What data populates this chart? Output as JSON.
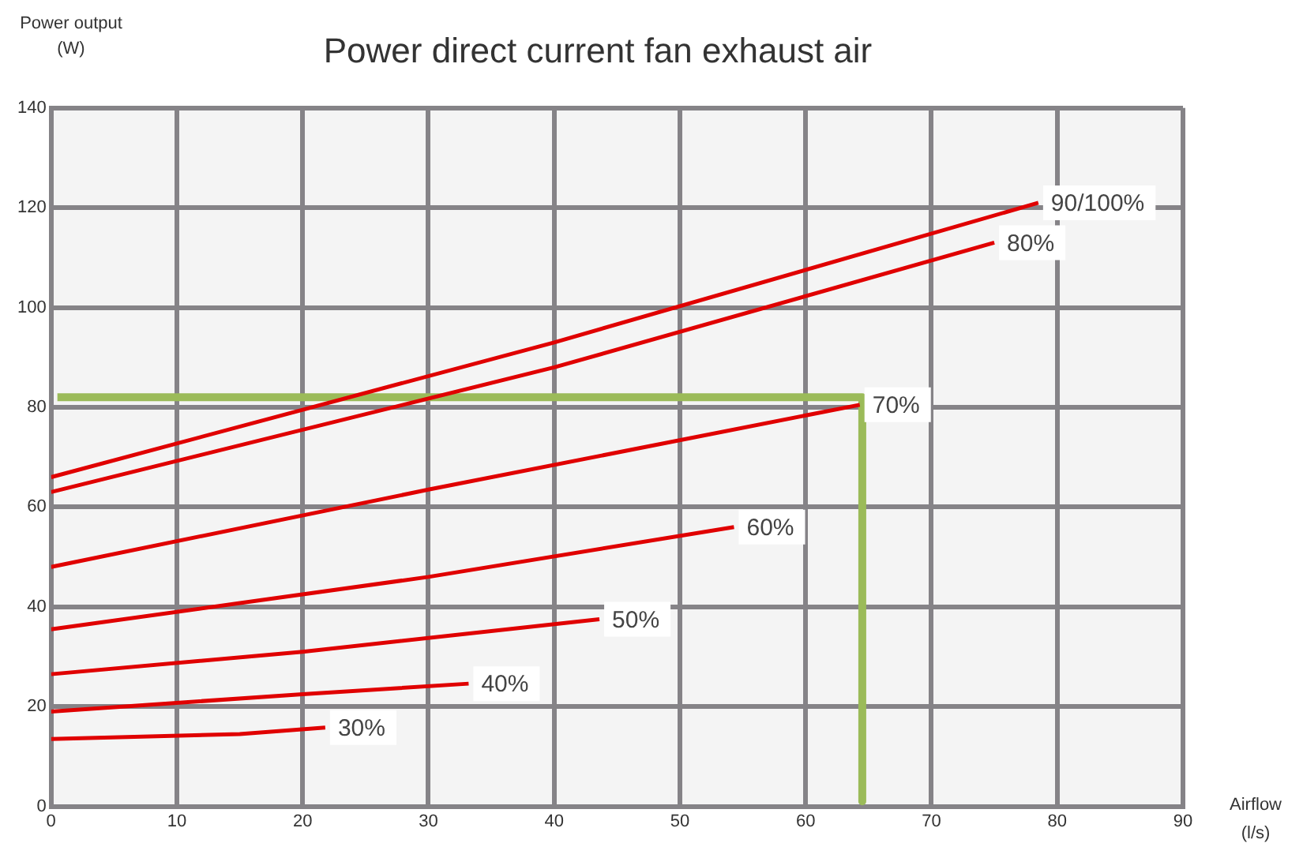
{
  "chart_data": {
    "type": "line",
    "title": "Power direct current fan exhaust air",
    "xlabel": "Airflow (l/s)",
    "ylabel": "Power output (W)",
    "xlim": [
      0,
      90
    ],
    "xticks": [
      0,
      10,
      20,
      30,
      40,
      50,
      60,
      70,
      80,
      90
    ],
    "ylim": [
      0,
      140
    ],
    "yticks": [
      0,
      20,
      40,
      60,
      80,
      100,
      120,
      140
    ],
    "grid": true,
    "legend": false,
    "marker": "none",
    "line_style": "solid",
    "series": [
      {
        "name": "90/100%",
        "color": "#e00000",
        "x": [
          0,
          40,
          78.5
        ],
        "values": [
          66,
          93,
          121
        ]
      },
      {
        "name": "80%",
        "color": "#e00000",
        "x": [
          0,
          40,
          75
        ],
        "values": [
          63,
          88,
          113
        ]
      },
      {
        "name": "70%",
        "color": "#e00000",
        "x": [
          0,
          30,
          64.3
        ],
        "values": [
          48,
          63.5,
          80.5
        ]
      },
      {
        "name": "60%",
        "color": "#e00000",
        "x": [
          0,
          30,
          54.3
        ],
        "values": [
          35.5,
          46,
          56
        ]
      },
      {
        "name": "50%",
        "color": "#e00000",
        "x": [
          0,
          20,
          43.6
        ],
        "values": [
          26.5,
          31,
          37.5
        ]
      },
      {
        "name": "40%",
        "color": "#e00000",
        "x": [
          0,
          20,
          33.2
        ],
        "values": [
          19,
          22.5,
          24.6
        ]
      },
      {
        "name": "30%",
        "color": "#e00000",
        "x": [
          0,
          15,
          21.8
        ],
        "values": [
          13.5,
          14.5,
          15.8
        ]
      },
      {
        "color": "#9bbb59",
        "x": [
          0.5,
          64.5,
          64.5
        ],
        "values": [
          82,
          82,
          1
        ]
      }
    ]
  }
}
